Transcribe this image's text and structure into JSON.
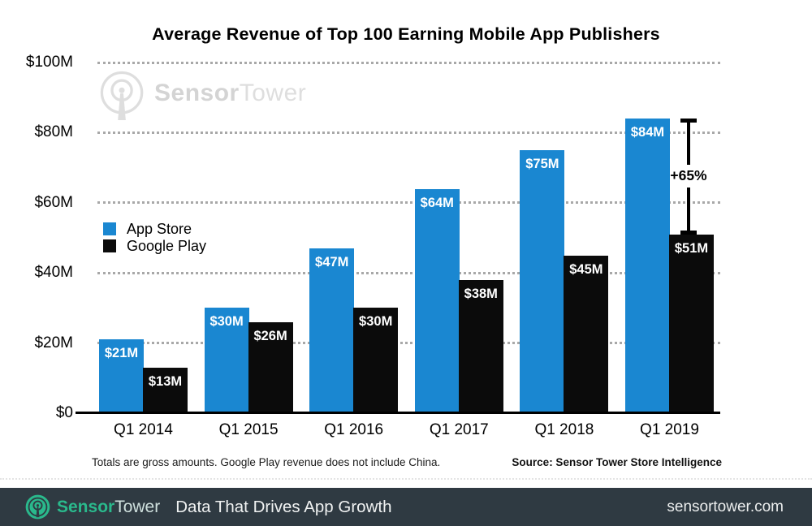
{
  "title": "Average Revenue of Top 100 Earning Mobile App Publishers",
  "chart_data": {
    "type": "bar",
    "title": "Average Revenue of Top 100 Earning Mobile App Publishers",
    "categories": [
      "Q1 2014",
      "Q1 2015",
      "Q1 2016",
      "Q1 2017",
      "Q1 2018",
      "Q1 2019"
    ],
    "series": [
      {
        "name": "App Store",
        "color": "#1a87d1",
        "values": [
          21,
          30,
          47,
          64,
          75,
          84
        ]
      },
      {
        "name": "Google Play",
        "color": "#0b0b0b",
        "values": [
          13,
          26,
          30,
          38,
          45,
          51
        ]
      }
    ],
    "value_label_format": "${v}M",
    "yticks": [
      {
        "value": 0,
        "label": "$0"
      },
      {
        "value": 20,
        "label": "$20M"
      },
      {
        "value": 40,
        "label": "$40M"
      },
      {
        "value": 60,
        "label": "$60M"
      },
      {
        "value": 80,
        "label": "$80M"
      },
      {
        "value": 100,
        "label": "$100M"
      }
    ],
    "ylim": [
      0,
      100
    ],
    "grid": "horizontal-dotted",
    "legend_position": "middle-left",
    "annotation": {
      "label": "+65%",
      "category": "Q1 2019",
      "from_value": 51,
      "to_value": 84
    }
  },
  "watermark": {
    "brand_bold": "Sensor",
    "brand_light": "Tower"
  },
  "footnote": "Totals are gross amounts. Google Play revenue does not include China.",
  "source": "Source: Sensor Tower Store Intelligence",
  "footer": {
    "brand_bold": "Sensor",
    "brand_light": "Tower",
    "tagline": "Data That Drives App Growth",
    "website": "sensortower.com",
    "background": "#2f3a42",
    "accent": "#2ab98c"
  },
  "colors": {
    "app_store": "#1a87d1",
    "google_play": "#0b0b0b",
    "grid_dots": "#a8a8a8"
  }
}
